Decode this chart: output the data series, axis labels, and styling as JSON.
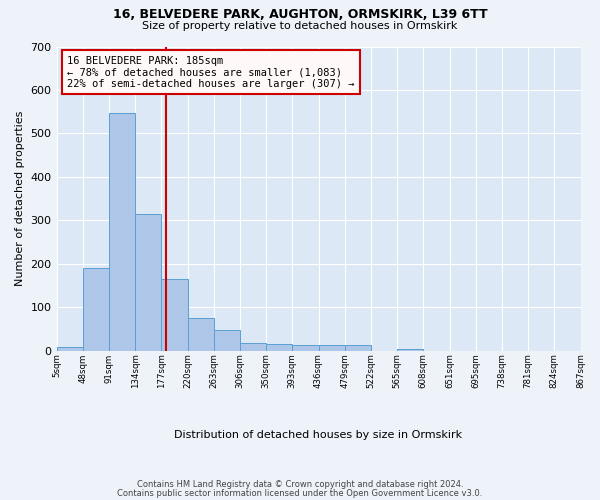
{
  "title1": "16, BELVEDERE PARK, AUGHTON, ORMSKIRK, L39 6TT",
  "title2": "Size of property relative to detached houses in Ormskirk",
  "xlabel": "Distribution of detached houses by size in Ormskirk",
  "ylabel": "Number of detached properties",
  "bar_color": "#aec6e8",
  "bar_edge_color": "#5a9fd4",
  "background_color": "#dce8f5",
  "grid_color": "#ffffff",
  "annotation_line_color": "#cc0000",
  "annotation_text": "16 BELVEDERE PARK: 185sqm\n← 78% of detached houses are smaller (1,083)\n22% of semi-detached houses are larger (307) →",
  "property_sqm": 185,
  "bin_edges": [
    5,
    48,
    91,
    134,
    177,
    220,
    263,
    306,
    350,
    393,
    436,
    479,
    522,
    565,
    608,
    651,
    695,
    738,
    781,
    824,
    867
  ],
  "bar_heights": [
    8,
    190,
    548,
    315,
    165,
    76,
    47,
    18,
    16,
    13,
    12,
    12,
    0,
    5,
    0,
    0,
    0,
    0,
    0,
    0
  ],
  "ylim": [
    0,
    700
  ],
  "yticks": [
    0,
    100,
    200,
    300,
    400,
    500,
    600,
    700
  ],
  "footnote1": "Contains HM Land Registry data © Crown copyright and database right 2024.",
  "footnote2": "Contains public sector information licensed under the Open Government Licence v3.0.",
  "fig_bg": "#eef3fa"
}
